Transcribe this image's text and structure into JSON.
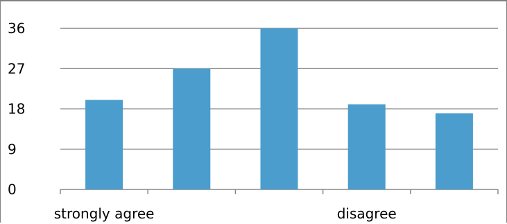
{
  "chart_data": {
    "type": "bar",
    "categories": [
      "strongly agree",
      "",
      "",
      "disagree",
      ""
    ],
    "values": [
      20,
      27,
      36,
      19,
      17
    ],
    "ylim": [
      0,
      36
    ],
    "yticks": [
      0,
      9,
      18,
      27,
      36
    ],
    "grid": true,
    "colors": {
      "bar": "#4a9dcc",
      "grid": "#888888",
      "axis": "#888888"
    }
  }
}
